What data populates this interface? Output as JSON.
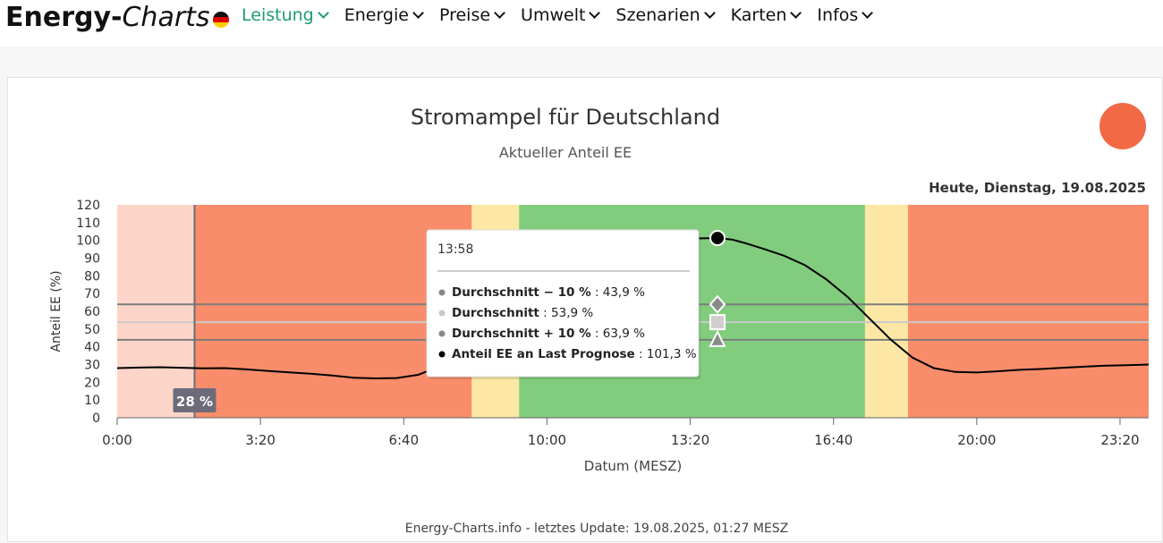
{
  "logo": {
    "part1": "Energy-",
    "part2": "Charts"
  },
  "nav": [
    {
      "label": "Leistung",
      "active": true
    },
    {
      "label": "Energie"
    },
    {
      "label": "Preise"
    },
    {
      "label": "Umwelt"
    },
    {
      "label": "Szenarien"
    },
    {
      "label": "Karten"
    },
    {
      "label": "Infos"
    }
  ],
  "colors": {
    "red_bg": "#f98d6b",
    "red_light": "#fdd5c8",
    "yellow": "#fce8a4",
    "green": "#82cc7e",
    "status_light": "#f26a45",
    "accent": "#1f9b74"
  },
  "chart_data": {
    "type": "line",
    "title": "Stromampel für Deutschland",
    "subtitle": "Aktueller Anteil EE",
    "date_label": "Heute, Dienstag, 19.08.2025",
    "ylabel": "Anteil EE (%)",
    "xlabel": "Datum (MESZ)",
    "ylim": [
      0,
      120
    ],
    "yticks": [
      "0",
      "10",
      "20",
      "30",
      "40",
      "50",
      "60",
      "70",
      "80",
      "90",
      "100",
      "110",
      "120"
    ],
    "xlim_hours": [
      0,
      24
    ],
    "xticks": [
      {
        "h": 0,
        "label": "0:00"
      },
      {
        "h": 3.333,
        "label": "3:20"
      },
      {
        "h": 6.667,
        "label": "6:40"
      },
      {
        "h": 10,
        "label": "10:00"
      },
      {
        "h": 13.333,
        "label": "13:20"
      },
      {
        "h": 16.667,
        "label": "16:40"
      },
      {
        "h": 20,
        "label": "20:00"
      },
      {
        "h": 23.333,
        "label": "23:20"
      }
    ],
    "zones": [
      {
        "from": 0,
        "to": 1.8,
        "status": "past"
      },
      {
        "from": 1.8,
        "to": 8.25,
        "status": "red"
      },
      {
        "from": 8.25,
        "to": 9.35,
        "status": "yellow"
      },
      {
        "from": 9.35,
        "to": 17.4,
        "status": "green"
      },
      {
        "from": 17.4,
        "to": 18.4,
        "status": "yellow"
      },
      {
        "from": 18.4,
        "to": 24,
        "status": "red"
      }
    ],
    "reference_lines": [
      {
        "name": "Durchschnitt − 10 %",
        "value": 43.9
      },
      {
        "name": "Durchschnitt",
        "value": 53.9
      },
      {
        "name": "Durchschnitt + 10 %",
        "value": 63.9
      }
    ],
    "series": [
      {
        "name": "Anteil EE an Last Prognose",
        "x": [
          0,
          0.5,
          1,
          1.5,
          2,
          2.5,
          3,
          3.5,
          4,
          4.5,
          5,
          5.5,
          6,
          6.5,
          7,
          7.3,
          7.6,
          8,
          8.5,
          9,
          9.5,
          10,
          10.5,
          11,
          11.5,
          12,
          12.5,
          13,
          13.5,
          13.97,
          14.3,
          14.6,
          15,
          15.5,
          16,
          16.5,
          17,
          17.5,
          18,
          18.5,
          19,
          19.5,
          20,
          20.5,
          21,
          21.5,
          22,
          22.5,
          23,
          23.5,
          24
        ],
        "y": [
          28,
          28.3,
          28.5,
          28.2,
          27.9,
          28,
          27.3,
          26.4,
          25.6,
          24.8,
          23.8,
          22.6,
          22.2,
          22.4,
          24.2,
          27,
          33,
          45,
          60,
          73,
          83,
          90,
          94,
          96.5,
          98.5,
          99.5,
          100.3,
          100.8,
          101.1,
          101.3,
          100.5,
          98.5,
          95.5,
          91.5,
          86,
          78,
          68,
          56,
          44,
          34,
          28,
          25.8,
          25.5,
          26.2,
          27,
          27.5,
          28.2,
          28.8,
          29.4,
          29.6,
          30
        ]
      }
    ],
    "crosshair": {
      "time": "13:58",
      "h": 13.967
    },
    "current_marker": {
      "h": 1.8,
      "label": "28 %"
    },
    "tooltip": {
      "time": "13:58",
      "rows": [
        {
          "name": "Durchschnitt − 10 %",
          "value": "43,9 %",
          "color": "#888888"
        },
        {
          "name": "Durchschnitt",
          "value": "53,9 %",
          "color": "#c8c8c8"
        },
        {
          "name": "Durchschnitt + 10 %",
          "value": "63,9 %",
          "color": "#888888"
        },
        {
          "name": "Anteil EE an Last Prognose",
          "value": "101,3 %",
          "color": "#000000"
        }
      ]
    },
    "footer": "Energy-Charts.info - letztes Update: 19.08.2025, 01:27 MESZ"
  }
}
